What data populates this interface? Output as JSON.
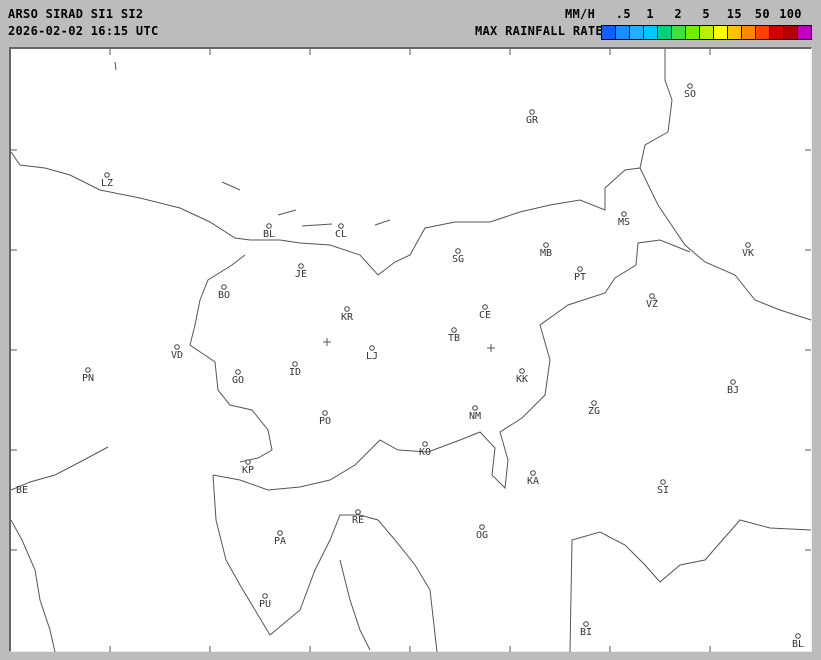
{
  "header": {
    "title": "ARSO SIRAD SI1 SI2",
    "timestamp": "2026-02-02 16:15 UTC"
  },
  "legend": {
    "unit": "MM/H",
    "title": "MAX RAINFALL RATE",
    "ticks": [
      ".5",
      "1",
      "2",
      "5",
      "15",
      "50",
      "100"
    ],
    "colors": [
      "#1060ff",
      "#1890ff",
      "#20b0ff",
      "#00c8ff",
      "#00d080",
      "#40e040",
      "#70f000",
      "#b8f000",
      "#ffff00",
      "#ffc000",
      "#ff8800",
      "#ff4000",
      "#d00000",
      "#b00000",
      "#c000c0"
    ]
  },
  "map": {
    "cities": [
      "SO",
      "GR",
      "LZ",
      "MS",
      "BL",
      "CL",
      "MB",
      "VK",
      "SG",
      "JE",
      "PT",
      "BO",
      "KR",
      "CE",
      "VŽ",
      "TB",
      "LJ",
      "VD",
      "ID",
      "PN",
      "GO",
      "KK",
      "BJ",
      "ZG",
      "NM",
      "PO",
      "KO",
      "KP",
      "KA",
      "SI",
      "BE",
      "RE",
      "OG",
      "PA",
      "PU",
      "BI",
      "BL"
    ],
    "radar_sites": 2,
    "precipitation": "none visible"
  }
}
